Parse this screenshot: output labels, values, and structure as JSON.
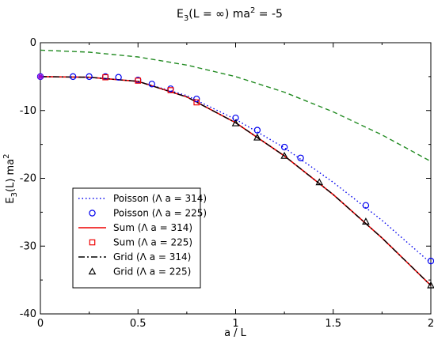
{
  "chart_data": {
    "type": "line",
    "title": "E3(L = ∞) ma2 = -5",
    "title_parts": {
      "main": "E",
      "sub": "3",
      "mid": "(L = ∞) ma",
      "sup": "2",
      "tail": " = -5"
    },
    "xlabel": "a / L",
    "ylabel": "E3(L) ma2",
    "ylabel_parts": {
      "main": "E",
      "sub": "3",
      "mid": "(L) ma",
      "sup": "2"
    },
    "xlim": [
      0,
      2
    ],
    "ylim": [
      -40,
      0
    ],
    "xticks": [
      0,
      0.5,
      1,
      1.5,
      2
    ],
    "xtick_labels": [
      "0",
      "0.5",
      "1",
      "1.5",
      "2"
    ],
    "yticks": [
      0,
      -10,
      -20,
      -30,
      -40
    ],
    "ytick_labels": [
      "0",
      "-10",
      "-20",
      "-30",
      "-40"
    ],
    "grid": false,
    "legend_position": "bottom-left",
    "colors": {
      "poisson": "#0000ee",
      "sum": "#ee0000",
      "grid": "#000000",
      "reference": "#228b22",
      "marker_star": "#9400d3"
    },
    "series": [
      {
        "name": "Poisson (Λ a = 314)",
        "style": "dotted-line",
        "color": "#0000ee",
        "x": [
          0,
          0.25,
          0.5,
          0.75,
          1.0,
          1.25,
          1.5,
          1.75,
          2.0
        ],
        "y": [
          -5.0,
          -5.1,
          -5.7,
          -7.8,
          -11.3,
          -15.5,
          -20.6,
          -26.2,
          -32.5
        ]
      },
      {
        "name": "Poisson (Λ a = 225)",
        "style": "circle-markers",
        "color": "#0000ee",
        "x": [
          0,
          0.167,
          0.25,
          0.333,
          0.4,
          0.5,
          0.571,
          0.667,
          0.8,
          1.0,
          1.111,
          1.25,
          1.333,
          1.667,
          2.0
        ],
        "y": [
          -5.0,
          -5.0,
          -5.0,
          -5.0,
          -5.1,
          -5.5,
          -6.1,
          -6.8,
          -8.3,
          -11.1,
          -12.9,
          -15.4,
          -17.0,
          -24.0,
          -32.2
        ]
      },
      {
        "name": "Sum (Λ a = 314)",
        "style": "solid-line",
        "color": "#ee0000",
        "x": [
          0,
          0.25,
          0.5,
          0.75,
          1.0,
          1.25,
          1.5,
          1.75,
          2.0
        ],
        "y": [
          -5.0,
          -5.1,
          -5.7,
          -8.0,
          -11.8,
          -16.7,
          -22.4,
          -28.8,
          -35.8
        ]
      },
      {
        "name": "Sum (Λ a = 225)",
        "style": "square-markers",
        "color": "#ee0000",
        "x": [
          0.333,
          0.5,
          0.667,
          0.8
        ],
        "y": [
          -5.1,
          -5.6,
          -7.0,
          -8.8
        ]
      },
      {
        "name": "Grid (Λ a = 314)",
        "style": "dashdot-line",
        "color": "#000000",
        "x": [
          0,
          0.25,
          0.5,
          0.75,
          1.0,
          1.25,
          1.5,
          1.75,
          2.0
        ],
        "y": [
          -5.0,
          -5.1,
          -5.7,
          -8.0,
          -11.8,
          -16.7,
          -22.4,
          -28.8,
          -35.8
        ]
      },
      {
        "name": "Grid (Λ a = 225)",
        "style": "triangle-markers",
        "color": "#000000",
        "x": [
          1.0,
          1.111,
          1.25,
          1.429,
          1.667,
          2.0
        ],
        "y": [
          -11.9,
          -14.0,
          -16.7,
          -20.6,
          -26.4,
          -35.8
        ]
      },
      {
        "style": "dashed-line",
        "color": "#228b22",
        "x": [
          0,
          0.25,
          0.5,
          0.75,
          1.0,
          1.25,
          1.5,
          1.75,
          2.0
        ],
        "y": [
          -1.1,
          -1.4,
          -2.1,
          -3.3,
          -5.0,
          -7.3,
          -10.2,
          -13.6,
          -17.5
        ]
      },
      {
        "style": "star-marker",
        "color": "#9400d3",
        "x": [
          0
        ],
        "y": [
          -5.0
        ]
      }
    ]
  }
}
